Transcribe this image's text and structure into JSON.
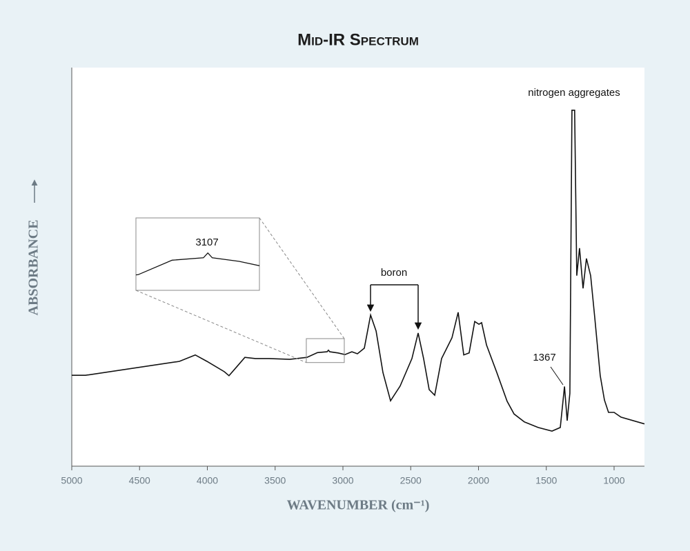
{
  "chart_data": {
    "type": "line",
    "title": "Mid-IR Spectrum",
    "x_label": "WAVENUMBER (cm⁻¹)",
    "y_label": "ABSORBANCE",
    "x": [
      5000,
      4898,
      4206,
      4089,
      4003,
      3875,
      3840,
      3774,
      3723,
      3646,
      3545,
      3392,
      3265,
      3188,
      3117,
      3107,
      3097,
      3036,
      2985,
      2934,
      2893,
      2842,
      2796,
      2755,
      2705,
      2649,
      2578,
      2491,
      2445,
      2405,
      2364,
      2323,
      2272,
      2196,
      2150,
      2109,
      2069,
      2028,
      1997,
      1977,
      1941,
      1865,
      1789,
      1738,
      1662,
      1560,
      1458,
      1397,
      1366,
      1346,
      1326,
      1311,
      1291,
      1275,
      1255,
      1229,
      1204,
      1173,
      1143,
      1102,
      1071,
      1041,
      1000,
      949,
      776
    ],
    "values": [
      0.228,
      0.228,
      0.263,
      0.279,
      0.263,
      0.237,
      0.227,
      0.253,
      0.273,
      0.27,
      0.27,
      0.268,
      0.273,
      0.285,
      0.287,
      0.291,
      0.287,
      0.284,
      0.28,
      0.287,
      0.282,
      0.296,
      0.379,
      0.339,
      0.235,
      0.164,
      0.201,
      0.27,
      0.334,
      0.27,
      0.192,
      0.178,
      0.27,
      0.322,
      0.386,
      0.279,
      0.284,
      0.363,
      0.356,
      0.36,
      0.304,
      0.235,
      0.163,
      0.131,
      0.111,
      0.097,
      0.088,
      0.097,
      0.2,
      0.114,
      0.183,
      0.893,
      0.893,
      0.478,
      0.547,
      0.446,
      0.521,
      0.478,
      0.374,
      0.227,
      0.166,
      0.135,
      0.135,
      0.123,
      0.106
    ],
    "color": "#111111",
    "xlim": [
      5000,
      776
    ],
    "ylim": [
      0,
      1
    ],
    "xticks": [
      5000,
      4500,
      4000,
      3500,
      3000,
      2500,
      2000,
      1500,
      1000
    ],
    "grid": false,
    "annotations": [
      "nitrogen aggregates",
      "boron",
      "1367"
    ],
    "inset": {
      "label": "3107",
      "xlim": [
        3270,
        2990
      ],
      "ylim": [
        0.26,
        0.32
      ]
    }
  }
}
